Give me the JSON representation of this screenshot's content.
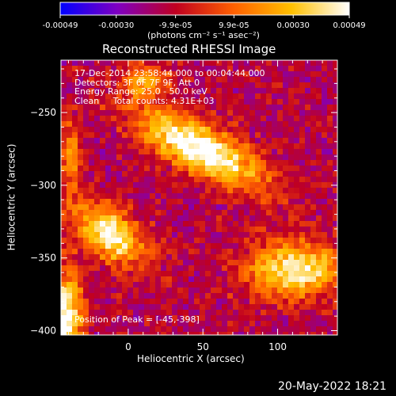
{
  "chart_data": {
    "type": "heatmap",
    "title": "Reconstructed RHESSI Image",
    "xlabel": "Heliocentric X (arcsec)",
    "ylabel": "Heliocentric Y (arcsec)",
    "xlim": [
      -45,
      140
    ],
    "ylim": [
      -403,
      -214
    ],
    "x_ticks": [
      0,
      50,
      100
    ],
    "y_ticks": [
      -250,
      -300,
      -350,
      -400
    ],
    "colorbar": {
      "range": [
        -0.00049,
        0.00049
      ],
      "tick_labels": [
        "-0.00049",
        "-0.00030",
        "-9.9e-05",
        "9.9e-05",
        "0.00030",
        "0.00049"
      ],
      "tick_values": [
        -0.00049,
        -0.0003,
        -9.9e-05,
        9.9e-05,
        0.0003,
        0.00049
      ],
      "unit_label": "(photons cm⁻² s⁻¹ asec⁻²)",
      "colors": [
        "#0000ff",
        "#8000c0",
        "#c00020",
        "#ff6000",
        "#ffc000",
        "#ffffff"
      ]
    },
    "info_lines": [
      "17-Dec-2014 23:58:44.000 to 00:04:44.000",
      "Detectors: 3F 6F 7F 9F, Att 0",
      "Energy Range: 25.0 - 50.0 keV",
      "Clean     Total counts: 4.31E+03"
    ],
    "peak_label": "Position of Peak = [-45,-398]",
    "peak": [
      -45,
      -398
    ],
    "sources": [
      {
        "x": 48,
        "y": -275,
        "sx": 32,
        "sy": 11,
        "angle_deg": -28,
        "amp": 1.0
      },
      {
        "x": -12,
        "y": -333,
        "sx": 18,
        "sy": 11,
        "angle_deg": -40,
        "amp": 0.9
      },
      {
        "x": 112,
        "y": -358,
        "sx": 22,
        "sy": 13,
        "angle_deg": 0,
        "amp": 0.85
      },
      {
        "x": -42,
        "y": -392,
        "sx": 8,
        "sy": 22,
        "angle_deg": 0,
        "amp": 0.95
      },
      {
        "x": 12,
        "y": -228,
        "sx": 12,
        "sy": 8,
        "angle_deg": 0,
        "amp": 0.5
      },
      {
        "x": -38,
        "y": -280,
        "sx": 5,
        "sy": 18,
        "angle_deg": 0,
        "amp": 0.45
      }
    ]
  },
  "footer": {
    "date": "20-May-2022 18:21"
  },
  "colors": {
    "background": "#000000",
    "text": "#ffffff"
  }
}
